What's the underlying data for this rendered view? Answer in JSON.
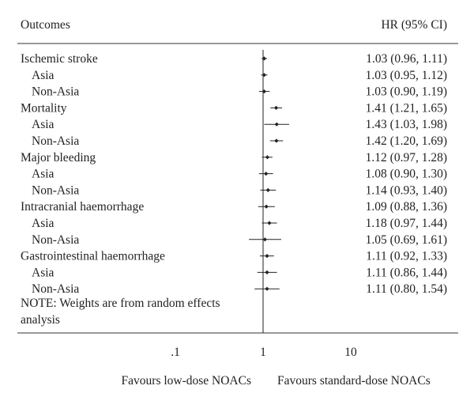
{
  "chart_data": {
    "type": "forest",
    "header_left": "Outcomes",
    "header_right": "HR (95% CI)",
    "x_scale": "log",
    "xlim": [
      0.03,
      60
    ],
    "x_ticks": [
      ".1",
      "1",
      "10"
    ],
    "reference_line": 1,
    "left_axis_label": "Favours low-dose NOACs",
    "right_axis_label": "Favours standard-dose NOACs",
    "note": [
      "NOTE: Weights are from random effects",
      "analysis"
    ],
    "rows": [
      {
        "label": "Ischemic stroke",
        "indent": 0,
        "hr": 1.03,
        "lo": 0.96,
        "hi": 1.11,
        "text": "1.03 (0.96, 1.11)"
      },
      {
        "label": "Asia",
        "indent": 1,
        "hr": 1.03,
        "lo": 0.95,
        "hi": 1.12,
        "text": "1.03 (0.95, 1.12)"
      },
      {
        "label": "Non-Asia",
        "indent": 1,
        "hr": 1.03,
        "lo": 0.9,
        "hi": 1.19,
        "text": "1.03 (0.90, 1.19)"
      },
      {
        "label": "Mortality",
        "indent": 0,
        "hr": 1.41,
        "lo": 1.21,
        "hi": 1.65,
        "text": "1.41 (1.21, 1.65)"
      },
      {
        "label": "Asia",
        "indent": 1,
        "hr": 1.43,
        "lo": 1.03,
        "hi": 1.98,
        "text": "1.43 (1.03, 1.98)"
      },
      {
        "label": "Non-Asia",
        "indent": 1,
        "hr": 1.42,
        "lo": 1.2,
        "hi": 1.69,
        "text": "1.42 (1.20, 1.69)"
      },
      {
        "label": "Major bleeding",
        "indent": 0,
        "hr": 1.12,
        "lo": 0.97,
        "hi": 1.28,
        "text": "1.12 (0.97, 1.28)"
      },
      {
        "label": "Asia",
        "indent": 1,
        "hr": 1.08,
        "lo": 0.9,
        "hi": 1.3,
        "text": "1.08 (0.90, 1.30)"
      },
      {
        "label": "Non-Asia",
        "indent": 1,
        "hr": 1.14,
        "lo": 0.93,
        "hi": 1.4,
        "text": "1.14 (0.93, 1.40)"
      },
      {
        "label": "Intracranial haemorrhage",
        "indent": 0,
        "hr": 1.09,
        "lo": 0.88,
        "hi": 1.36,
        "text": "1.09 (0.88, 1.36)"
      },
      {
        "label": "Asia",
        "indent": 1,
        "hr": 1.18,
        "lo": 0.97,
        "hi": 1.44,
        "text": "1.18 (0.97, 1.44)"
      },
      {
        "label": "Non-Asia",
        "indent": 1,
        "hr": 1.05,
        "lo": 0.69,
        "hi": 1.61,
        "text": "1.05 (0.69, 1.61)"
      },
      {
        "label": "Gastrointestinal haemorrhage",
        "indent": 0,
        "hr": 1.11,
        "lo": 0.92,
        "hi": 1.33,
        "text": "1.11 (0.92, 1.33)"
      },
      {
        "label": "Asia",
        "indent": 1,
        "hr": 1.11,
        "lo": 0.86,
        "hi": 1.44,
        "text": "1.11 (0.86, 1.44)"
      },
      {
        "label": "Non-Asia",
        "indent": 1,
        "hr": 1.11,
        "lo": 0.8,
        "hi": 1.54,
        "text": "1.11 (0.80, 1.54)"
      }
    ]
  }
}
